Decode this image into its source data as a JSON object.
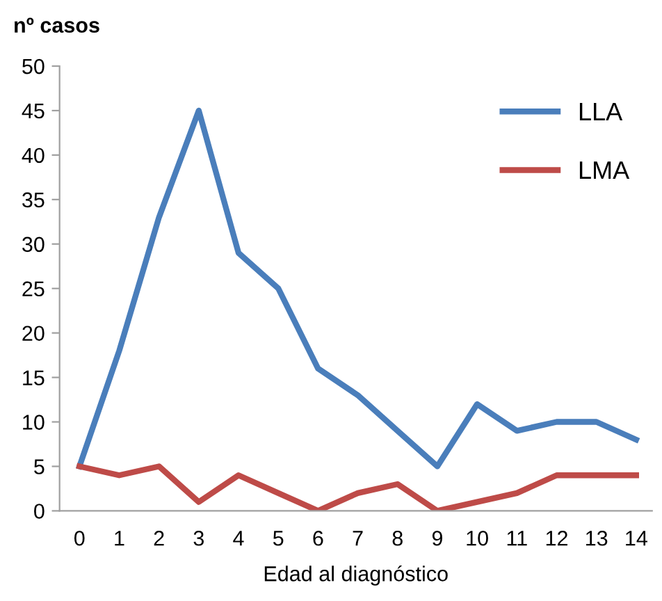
{
  "chart_data": {
    "type": "line",
    "title": "nº casos",
    "xlabel": "Edad al diagnóstico",
    "categories": [
      "0",
      "1",
      "2",
      "3",
      "4",
      "5",
      "6",
      "7",
      "8",
      "9",
      "10",
      "11",
      "12",
      "13",
      "14"
    ],
    "series": [
      {
        "name": "LLA",
        "color": "#4a7ebb",
        "values": [
          5,
          18,
          33,
          45,
          29,
          25,
          16,
          13,
          9,
          5,
          12,
          9,
          10,
          10,
          8
        ]
      },
      {
        "name": "LMA",
        "color": "#be4b48",
        "values": [
          5,
          4,
          5,
          1,
          4,
          2,
          0,
          2,
          3,
          0,
          1,
          2,
          4,
          4,
          4
        ]
      }
    ],
    "ylim": [
      0,
      50
    ],
    "yticks": [
      0,
      5,
      10,
      15,
      20,
      25,
      30,
      35,
      40,
      45,
      50
    ],
    "grid": false,
    "legend": "top right",
    "marker": "none",
    "line_style": "solid"
  }
}
